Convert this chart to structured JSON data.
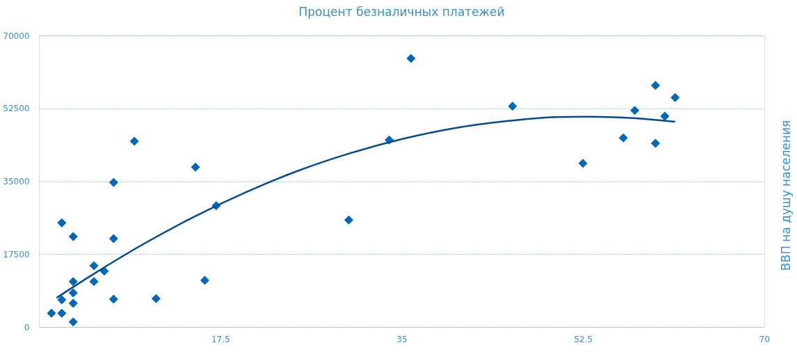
{
  "chart_data": {
    "type": "scatter",
    "title": "Процент безналичных платежей",
    "ylabel": "ВВП на душу населения",
    "xlim": [
      0,
      70
    ],
    "xticks": [
      17.5,
      35,
      52.5,
      70
    ],
    "ylim": [
      0,
      70000
    ],
    "yticks": [
      0,
      17500,
      35000,
      52500,
      70000
    ],
    "grid": "y",
    "series": [
      {
        "marker": "diamond",
        "color": "#0068b4",
        "x": [
          1.2,
          2.2,
          2.2,
          2.2,
          3.3,
          3.3,
          3.3,
          3.3,
          3.3,
          5.3,
          5.3,
          6.3,
          7.2,
          7.2,
          7.2,
          9.2,
          11.3,
          15.1,
          16.0,
          17.1,
          29.9,
          33.8,
          35.9,
          45.7,
          52.5,
          56.4,
          57.5,
          59.5,
          59.5,
          60.4,
          61.4
        ],
        "values": [
          3300,
          3300,
          6500,
          25000,
          1200,
          5700,
          8200,
          10900,
          21700,
          14700,
          10900,
          13400,
          6700,
          21200,
          34700,
          44600,
          6800,
          38400,
          11200,
          29100,
          25700,
          44900,
          64500,
          53000,
          39300,
          45400,
          52000,
          58000,
          44100,
          50600,
          55100
        ]
      },
      {
        "type": "line",
        "marker": "none",
        "color": "#004a8f",
        "x": [
          1.7,
          5,
          10,
          15,
          20,
          25,
          30,
          35,
          40,
          45,
          50,
          53,
          57,
          61.4
        ],
        "values": [
          7000,
          12300,
          19800,
          26500,
          32400,
          37500,
          41700,
          45100,
          47700,
          49400,
          50400,
          50500,
          50200,
          49300
        ]
      }
    ]
  }
}
